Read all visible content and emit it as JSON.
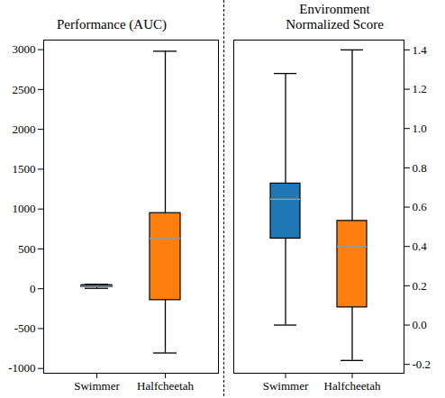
{
  "chart_data": [
    {
      "type": "box",
      "title": "Performance (AUC)",
      "categories": [
        "Swimmer",
        "Halfcheetah"
      ],
      "boxes": [
        {
          "min": 5,
          "q1": 20,
          "median": 30,
          "q3": 45,
          "max": 55
        },
        {
          "min": -806,
          "q1": -143,
          "median": 633,
          "q3": 949,
          "max": 2980
        }
      ],
      "colors": [
        "#1f77b4",
        "#ff7f0e"
      ],
      "ylim": [
        -1060,
        3120
      ],
      "yticks": [
        -1000,
        -500,
        0,
        500,
        1000,
        1500,
        2000,
        2500,
        3000
      ]
    },
    {
      "type": "box",
      "title": "Environment\nNormalized Score",
      "categories": [
        "Swimmer",
        "Halfcheetah"
      ],
      "boxes": [
        {
          "min": 0.0,
          "q1": 0.44,
          "median": 0.64,
          "q3": 0.72,
          "max": 1.28
        },
        {
          "min": -0.18,
          "q1": 0.09,
          "median": 0.4,
          "q3": 0.53,
          "max": 1.4
        }
      ],
      "colors": [
        "#1f77b4",
        "#ff7f0e"
      ],
      "ylim": [
        -0.245,
        1.45
      ],
      "yticks": [
        {
          "value": -0.2,
          "label": "-0.2"
        },
        {
          "value": 0,
          "label": "0.0"
        },
        0.2,
        0.4,
        0.6,
        0.8,
        {
          "value": 1,
          "label": "1.0"
        },
        1.2,
        1.4
      ]
    }
  ]
}
